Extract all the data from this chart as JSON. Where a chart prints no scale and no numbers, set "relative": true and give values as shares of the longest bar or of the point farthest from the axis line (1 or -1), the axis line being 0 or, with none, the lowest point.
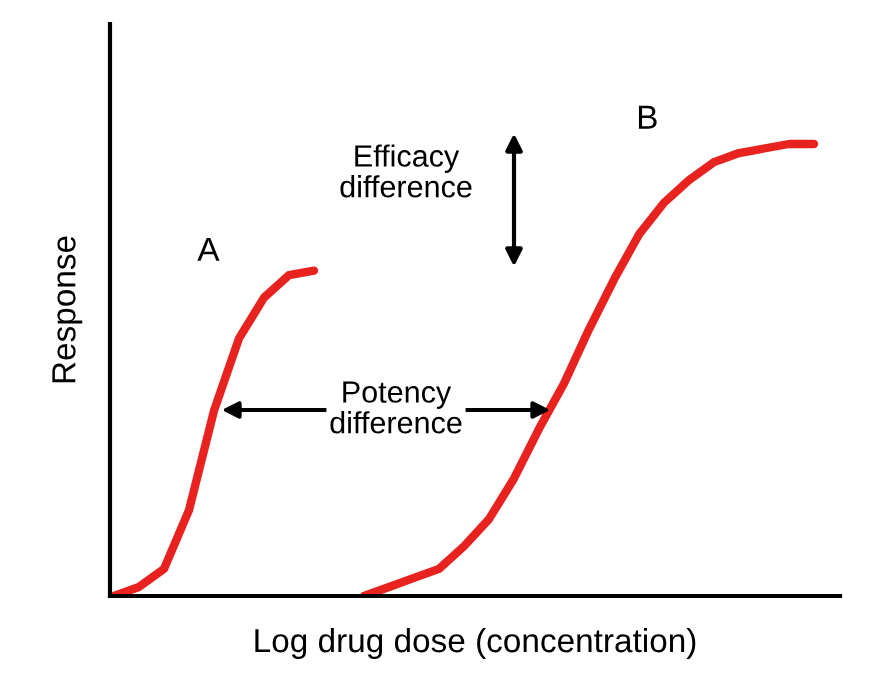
{
  "chart_data": {
    "type": "line",
    "relative": true,
    "xlabel": "Log drug dose (concentration)",
    "ylabel": "Response",
    "categories": [
      null,
      null,
      null,
      null,
      null,
      null,
      null,
      null,
      null,
      null,
      null,
      null,
      null,
      null,
      null,
      null,
      null,
      null,
      null,
      null,
      null,
      null,
      null,
      null,
      null,
      null,
      null,
      null,
      null
    ],
    "series": [
      {
        "name": "A",
        "color": "#e8231f",
        "values": [
          0.0,
          0.02,
          0.06,
          0.19,
          0.41,
          0.57,
          0.66,
          0.71,
          0.72,
          null,
          null,
          null,
          null,
          null,
          null,
          null,
          null,
          null,
          null,
          null,
          null,
          null,
          null,
          null,
          null,
          null,
          null,
          null,
          null
        ]
      },
      {
        "name": "B",
        "color": "#e8231f",
        "values": [
          null,
          null,
          null,
          null,
          null,
          null,
          null,
          null,
          null,
          null,
          0.0,
          0.02,
          0.04,
          0.06,
          0.11,
          0.17,
          0.26,
          0.37,
          0.47,
          0.59,
          0.7,
          0.8,
          0.87,
          0.92,
          0.96,
          0.98,
          0.99,
          1.0,
          1.0
        ]
      }
    ],
    "annotations": [
      "Efficacy difference",
      "Potency difference"
    ],
    "grid": false,
    "legend": false,
    "marker": "none",
    "line_style": "solid"
  }
}
